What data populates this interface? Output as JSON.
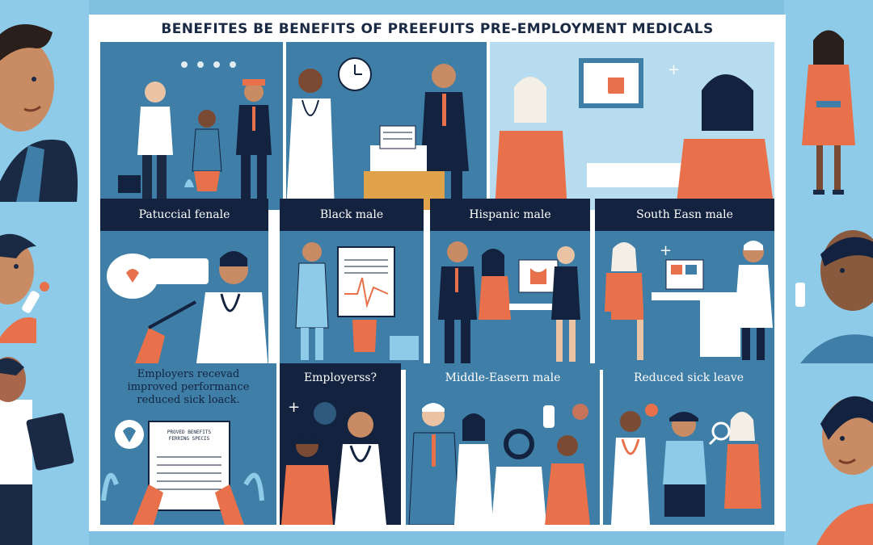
{
  "poster": {
    "title": "BENEFITES BE BENEFITS OF PREEFUITS PRE-EMPLOYMENT MEDICALS"
  },
  "panels": [
    {
      "caption": ""
    },
    {
      "caption": ""
    },
    {
      "caption": ""
    },
    {
      "caption": "Patuccial fenale"
    },
    {
      "caption": "Black male"
    },
    {
      "caption": "Hispanic male"
    },
    {
      "caption": "South Easn male"
    },
    {
      "caption_lines": [
        "Employers recevad",
        "improved performance",
        "reduced sick loack."
      ],
      "doc_text": [
        "PROVED BENEFITS",
        "FERRING SPECIS"
      ]
    },
    {
      "caption": "Employerss?"
    },
    {
      "caption": "Middle-Easern male"
    },
    {
      "caption": "Reduced sick leave"
    }
  ],
  "colors": {
    "navy": "#13233f",
    "blue": "#3f7ea6",
    "light_blue": "#8ecbe9",
    "coral": "#e8704a",
    "white": "#ffffff"
  }
}
